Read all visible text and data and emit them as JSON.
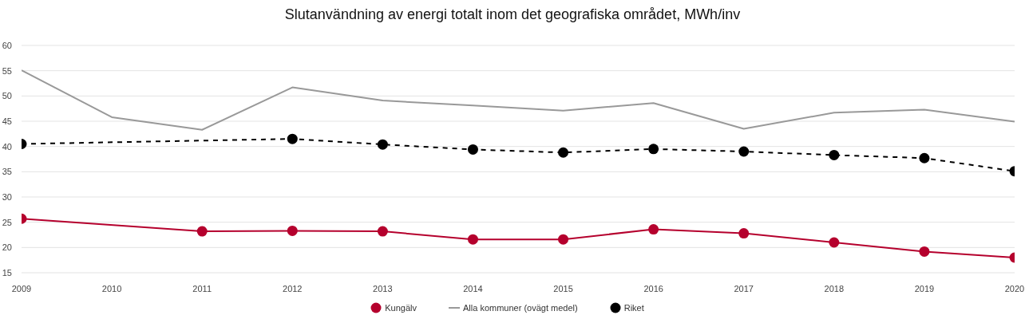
{
  "chart_data": {
    "type": "line",
    "title": "Slutanvändning av energi totalt inom det geografiska området, MWh/inv",
    "x": [
      2009,
      2010,
      2011,
      2012,
      2013,
      2014,
      2015,
      2016,
      2017,
      2018,
      2019,
      2020
    ],
    "series": [
      {
        "name": "Kungälv",
        "color": "#b5002d",
        "values": [
          25.7,
          null,
          23.2,
          23.3,
          23.2,
          21.6,
          21.6,
          23.6,
          22.8,
          21.0,
          19.2,
          18.0
        ]
      },
      {
        "name": "Alla kommuner (ovägt medel)",
        "color": "#999999",
        "marker": "none",
        "values": [
          55.1,
          45.8,
          43.3,
          51.7,
          49.1,
          48.1,
          47.1,
          48.6,
          43.5,
          46.7,
          47.3,
          44.9
        ]
      },
      {
        "name": "Riket",
        "color": "#000000",
        "line_style": "dashed",
        "values": [
          40.5,
          null,
          null,
          41.5,
          40.4,
          39.4,
          38.8,
          39.5,
          39.0,
          38.3,
          37.7,
          35.1
        ]
      }
    ],
    "xlim": [
      2009,
      2020
    ],
    "xticks": [
      2009,
      2010,
      2011,
      2012,
      2013,
      2014,
      2015,
      2016,
      2017,
      2018,
      2019,
      2020
    ],
    "ylim": [
      15,
      60
    ],
    "yticks": [
      15,
      20,
      25,
      30,
      35,
      40,
      45,
      50,
      55,
      60
    ],
    "grid": "y",
    "legend": "bottom",
    "marker": "circle",
    "line_style": "solid"
  }
}
